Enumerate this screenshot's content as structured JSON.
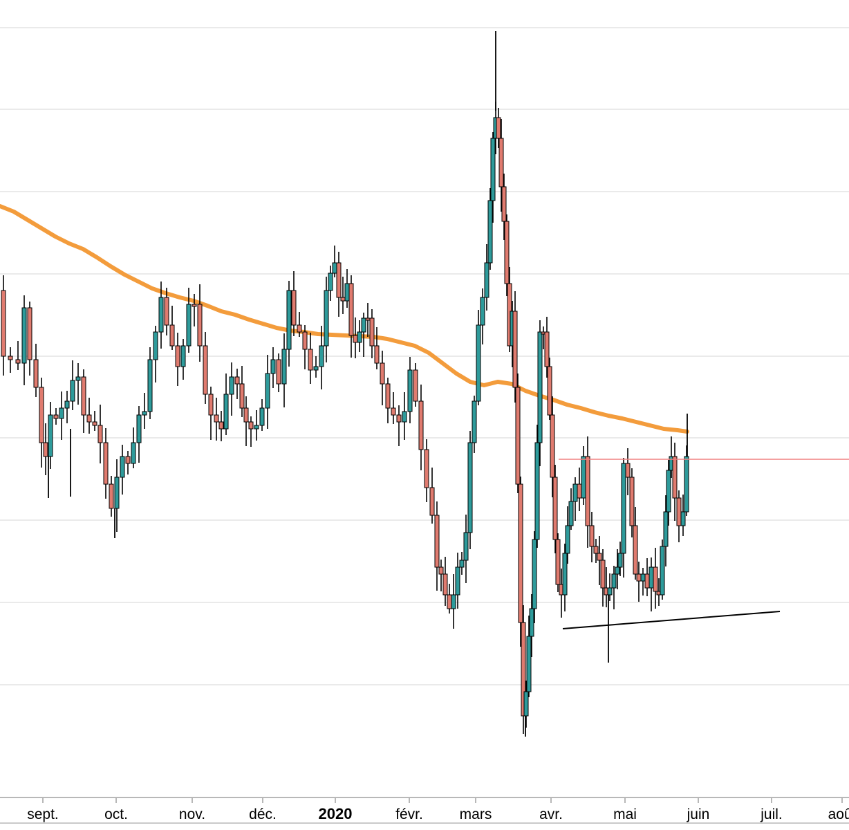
{
  "colors": {
    "background": "#ffffff",
    "grid": "#e3e3e3",
    "axis": "#b8b8b8",
    "up_candle": "#2e9b9b",
    "down_candle": "#e07b6f",
    "wick": "#000000",
    "moving_average": "#f39c3c",
    "resistance_line": "#f08080",
    "support_line": "#000000"
  },
  "chart_data": {
    "type": "candlestick",
    "title": "",
    "xlabel": "",
    "ylabel": "",
    "grid": true,
    "x_tick_labels": [
      {
        "label": "sept.",
        "major": false
      },
      {
        "label": "oct.",
        "major": false
      },
      {
        "label": "nov.",
        "major": false
      },
      {
        "label": "déc.",
        "major": false
      },
      {
        "label": "2020",
        "major": true
      },
      {
        "label": "févr.",
        "major": false
      },
      {
        "label": "mars",
        "major": false
      },
      {
        "label": "avr.",
        "major": false
      },
      {
        "label": "mai",
        "major": false
      },
      {
        "label": "juin",
        "major": false
      },
      {
        "label": "juil.",
        "major": false
      },
      {
        "label": "août",
        "major": false
      }
    ],
    "y_scale_note": "no y tick labels shown",
    "series": [
      {
        "kind": "candles",
        "description": "daily OHLC candlesticks from late Aug 2019 to late May 2020"
      },
      {
        "kind": "moving_average",
        "description": "long-period moving average, declining"
      },
      {
        "kind": "horizontal_line",
        "description": "resistance level"
      },
      {
        "kind": "trend_line",
        "description": "rising support trend line from April lows"
      }
    ]
  }
}
